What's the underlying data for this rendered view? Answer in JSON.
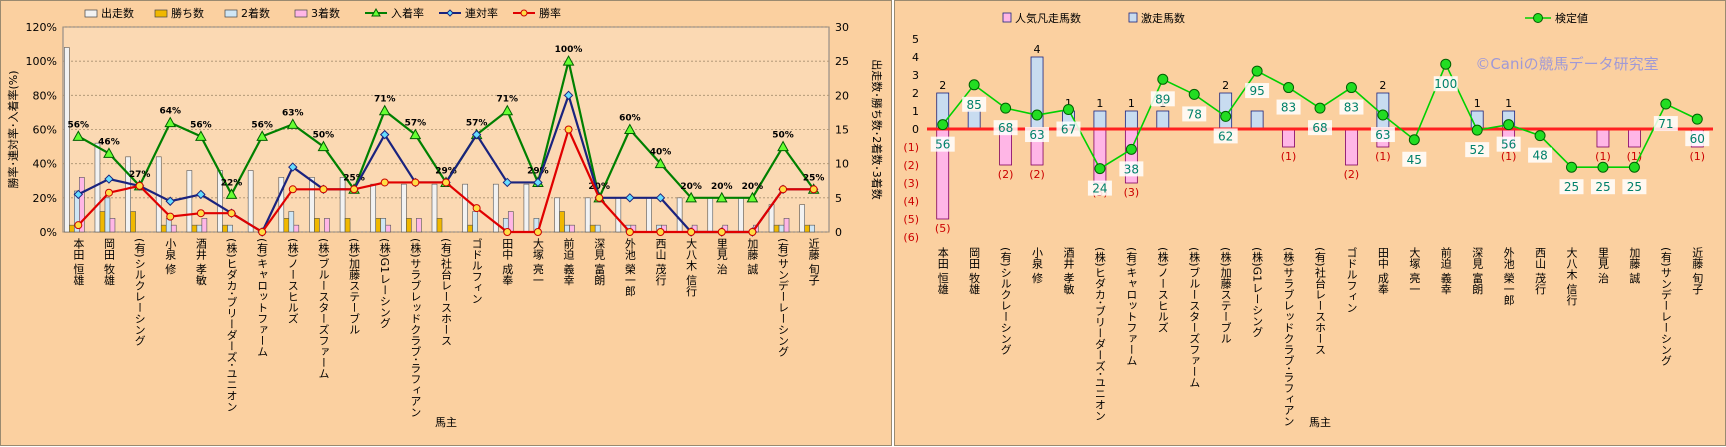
{
  "charts": {
    "left_xlabel": "馬主",
    "right_xlabel": "馬主",
    "watermark": "©Caniの競馬データ研究室"
  },
  "chart_data": [
    {
      "type": "bar",
      "ylabel_left": "勝率･連対率･入着率(%)",
      "ylabel_right": "出走数･勝ち数･2着数･3着数",
      "xlabel": "馬主",
      "ylim_left": [
        0,
        120
      ],
      "ylim_right": [
        0,
        30
      ],
      "yticks_left": [
        "0%",
        "20%",
        "40%",
        "60%",
        "80%",
        "100%",
        "120%"
      ],
      "yticks_right": [
        "0",
        "5",
        "10",
        "15",
        "20",
        "25",
        "30"
      ],
      "grid": true,
      "legend_position": "top",
      "categories": [
        "本田 恒雄",
        "岡田 牧雄",
        "(有)シルクレーシング",
        "小泉 修",
        "酒井 孝敏",
        "(株)ヒダカ･ブリーダーズ･ユニオン",
        "(有)キャロットファーム",
        "(株)ノースヒルズ",
        "(株)ブルースターズファーム",
        "(株)加藤ステーブル",
        "(株)G1レーシング",
        "(株)サラブレッドクラブ･ラフィアン",
        "(有)社台レースホース",
        "ゴドルフィン",
        "田中 成奉",
        "大塚 亮一",
        "前迫 義幸",
        "深見 富朗",
        "外池 榮一郎",
        "西山 茂行",
        "大八木 信行",
        "里見 治",
        "加藤 誠",
        "(有)サンデーレーシング",
        "近藤 旬子"
      ],
      "bar_series": [
        {
          "name": "出走数",
          "color": "#f2f2f2",
          "values": [
            27,
            13,
            11,
            11,
            9,
            9,
            9,
            8,
            8,
            8,
            7,
            7,
            7,
            7,
            7,
            7,
            5,
            5,
            5,
            5,
            5,
            5,
            5,
            4,
            4
          ]
        },
        {
          "name": "勝ち数",
          "color": "#f0b800",
          "values": [
            1,
            3,
            3,
            1,
            1,
            1,
            0,
            2,
            2,
            2,
            2,
            2,
            2,
            1,
            0,
            0,
            3,
            1,
            0,
            0,
            0,
            0,
            0,
            1,
            1
          ]
        },
        {
          "name": "2着数",
          "color": "#cfe6f5",
          "values": [
            6,
            5,
            0,
            2,
            1,
            1,
            0,
            3,
            0,
            0,
            2,
            0,
            0,
            3,
            2,
            2,
            1,
            1,
            1,
            1,
            0,
            0,
            0,
            1,
            1
          ]
        },
        {
          "name": "3着数",
          "color": "#ffb6e6",
          "values": [
            8,
            2,
            0,
            1,
            2,
            0,
            0,
            1,
            2,
            0,
            1,
            2,
            0,
            0,
            3,
            0,
            1,
            0,
            1,
            1,
            1,
            1,
            1,
            2,
            0
          ]
        }
      ],
      "line_series": [
        {
          "name": "入着率",
          "color": "#008000",
          "values": [
            56,
            46,
            27,
            64,
            56,
            22,
            56,
            63,
            50,
            25,
            71,
            57,
            29,
            57,
            71,
            29,
            100,
            20,
            60,
            40,
            20,
            20,
            20,
            50,
            25
          ],
          "labels": [
            "56%",
            "46%",
            "27%",
            "64%",
            "56%",
            "22%",
            "56%",
            "63%",
            "50%",
            "25%",
            "71%",
            "57%",
            "29%",
            "57%",
            "71%",
            "29%",
            "100%",
            "20%",
            "60%",
            "40%",
            "20%",
            "20%",
            "20%",
            "50%",
            "25%"
          ]
        },
        {
          "name": "連対率",
          "color": "#1a237e",
          "values": [
            22,
            31,
            27,
            18,
            22,
            11,
            0,
            38,
            25,
            25,
            57,
            29,
            29,
            57,
            29,
            29,
            80,
            20,
            20,
            20,
            0,
            0,
            0,
            25,
            25
          ]
        },
        {
          "name": "勝率",
          "color": "#e00000",
          "values": [
            4,
            23,
            27,
            9,
            11,
            11,
            0,
            25,
            25,
            25,
            29,
            29,
            29,
            14,
            0,
            0,
            60,
            20,
            0,
            0,
            0,
            0,
            0,
            25,
            25
          ]
        }
      ]
    },
    {
      "type": "bar",
      "xlabel": "馬主",
      "ylim": [
        -6,
        5
      ],
      "yticks": [
        "5",
        "4",
        "3",
        "2",
        "1",
        "0",
        "(1)",
        "(2)",
        "(3)",
        "(4)",
        "(5)",
        "(6)"
      ],
      "grid": false,
      "legend_position": "top",
      "categories": [
        "本田 恒雄",
        "岡田 牧雄",
        "(有)シルクレーシング",
        "小泉 修",
        "酒井 孝敏",
        "(株)ヒダカ･ブリーダーズ･ユニオン",
        "(有)キャロットファーム",
        "(株)ノースヒルズ",
        "(株)ブルースターズファーム",
        "(株)加藤ステーブル",
        "(株)G1レーシング",
        "(株)サラブレッドクラブ･ラフィアン",
        "(有)社台レースホース",
        "ゴドルフィン",
        "田中 成奉",
        "大塚 亮一",
        "前迫 義幸",
        "深見 富朗",
        "外池 榮一郎",
        "西山 茂行",
        "大八木 信行",
        "里見 治",
        "加藤 誠",
        "(有)サンデーレーシング",
        "近藤 旬子"
      ],
      "series": [
        {
          "name": "人気凡走馬数",
          "color": "#ffb6e6",
          "values": [
            -5,
            0,
            -2,
            -2,
            0,
            -3,
            -3,
            0,
            0,
            0,
            0,
            -1,
            0,
            -2,
            -1,
            0,
            0,
            0,
            -1,
            0,
            0,
            -1,
            -1,
            0,
            -1
          ],
          "labels": [
            "(5)",
            "",
            "(2)",
            "(2)",
            "",
            "(3)",
            "(3)",
            "",
            "",
            "",
            "",
            "(1)",
            "",
            "(2)",
            "(1)",
            "",
            "",
            "",
            "(1)",
            "",
            "",
            "(1)",
            "(1)",
            "",
            "(1)"
          ]
        },
        {
          "name": "激走馬数",
          "color": "#c8dcf0",
          "values": [
            2,
            1,
            0,
            4,
            1,
            1,
            1,
            1,
            0,
            2,
            1,
            0,
            0,
            0,
            2,
            0,
            0,
            1,
            1,
            0,
            0,
            0,
            0,
            0,
            0
          ],
          "labels": [
            "2",
            "",
            "",
            "4",
            "1",
            "1",
            "1",
            "1",
            "",
            "2",
            "",
            "",
            "",
            "",
            "2",
            "",
            "",
            "1",
            "1",
            "",
            "",
            "",
            "",
            "",
            ""
          ]
        }
      ],
      "line_series": [
        {
          "name": "検定値",
          "color": "#00d000",
          "values": [
            56,
            85,
            68,
            63,
            67,
            24,
            38,
            89,
            78,
            62,
            95,
            83,
            68,
            83,
            63,
            45,
            100,
            52,
            56,
            48,
            25,
            25,
            25,
            71,
            60
          ],
          "labels": [
            "56",
            "85",
            "68",
            "63",
            "67",
            "24",
            "38",
            "89",
            "78",
            "62",
            "95",
            "83",
            "68",
            "83",
            "63",
            "45",
            "100",
            "52",
            "56",
            "48",
            "25",
            "25",
            "25",
            "71",
            "60"
          ]
        }
      ]
    }
  ]
}
